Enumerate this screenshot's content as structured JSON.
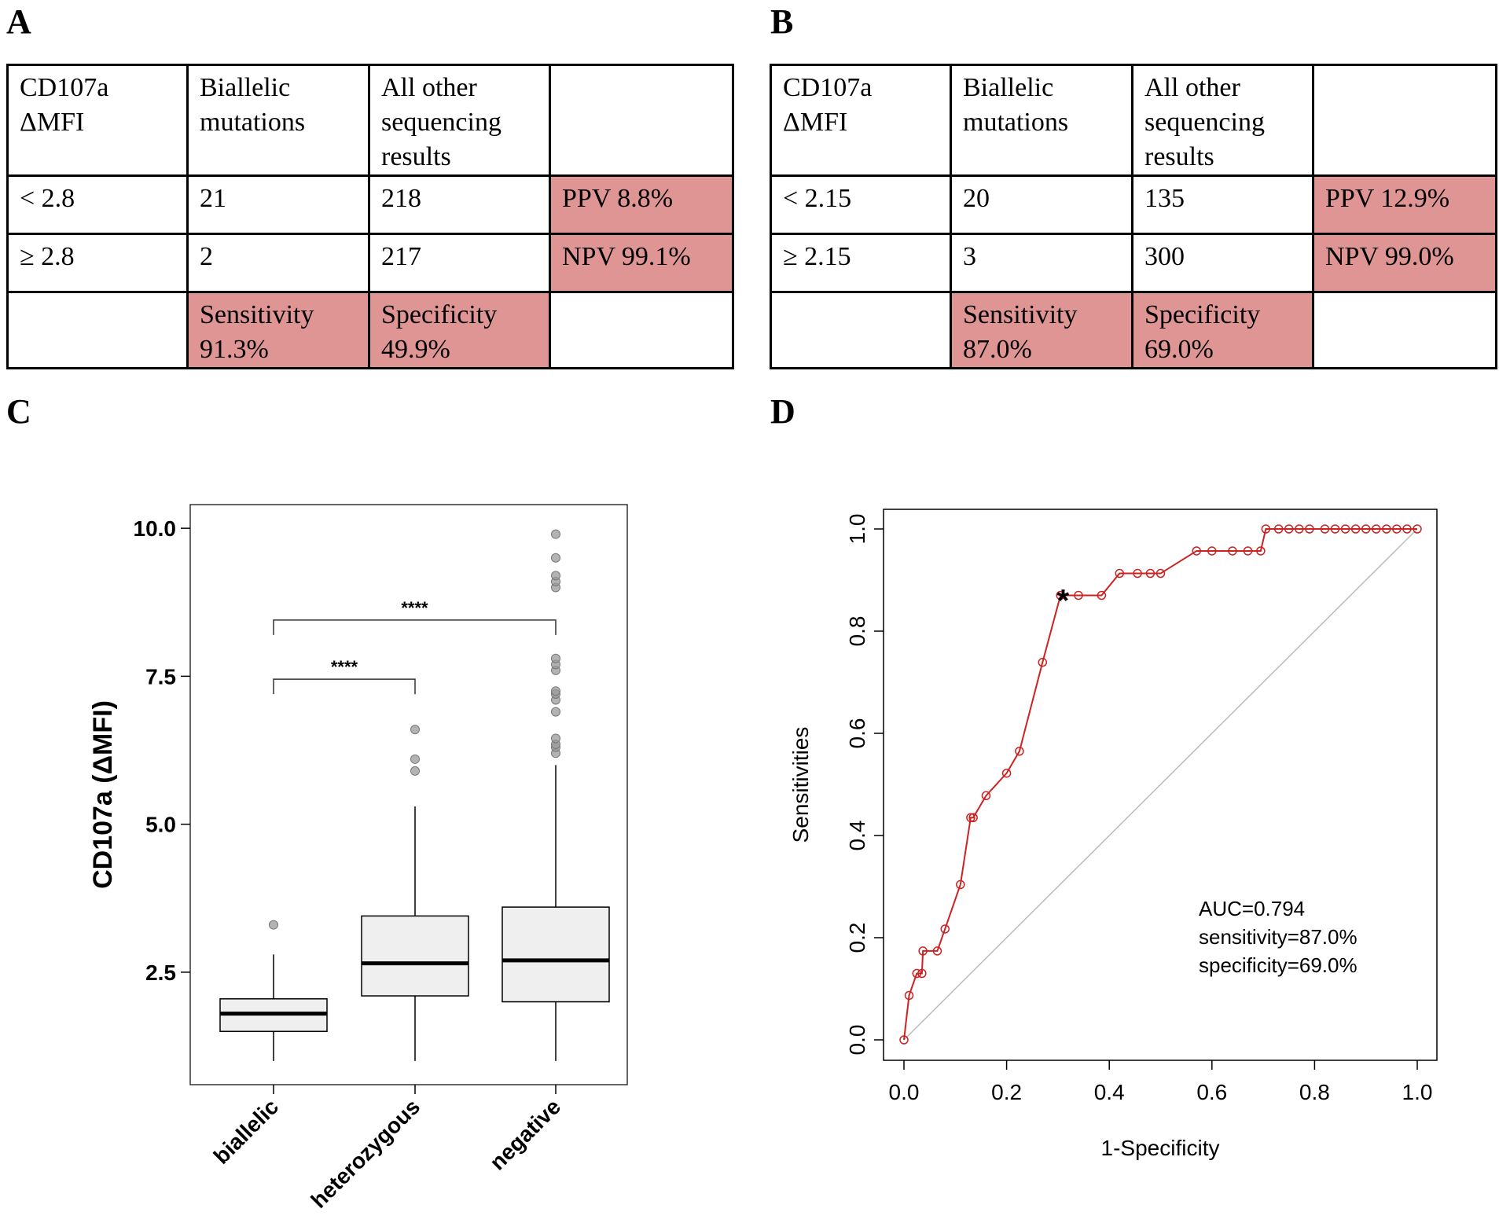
{
  "panels": {
    "a": "A",
    "b": "B",
    "c": "C",
    "d": "D"
  },
  "table_a": {
    "header": [
      "CD107a ΔMFI",
      "Biallelic mutations",
      "All other sequencing results",
      ""
    ],
    "row1": [
      "< 2.8",
      "21",
      "218",
      "PPV 8.8%"
    ],
    "row2": [
      "≥ 2.8",
      "2",
      "217",
      "NPV 99.1%"
    ],
    "row3": [
      "",
      "Sensitivity 91.3%",
      "Specificity 49.9%",
      ""
    ]
  },
  "table_b": {
    "header": [
      "CD107a ΔMFI",
      "Biallelic mutations",
      "All other sequencing results",
      ""
    ],
    "row1": [
      "< 2.15",
      "20",
      "135",
      "PPV 12.9%"
    ],
    "row2": [
      "≥ 2.15",
      "3",
      "300",
      "NPV 99.0%"
    ],
    "row3": [
      "",
      "Sensitivity 87.0%",
      "Specificity 69.0%",
      ""
    ]
  },
  "colors": {
    "highlight": "#e09595",
    "roc": "#cc2222",
    "box_fill": "#efefef"
  },
  "chart_data": [
    {
      "type": "box",
      "ylabel": "CD107a (ΔMFI)",
      "ylim": [
        0.6,
        10.4
      ],
      "yticks": [
        "2.5",
        "5.0",
        "7.5",
        "10.0"
      ],
      "categories": [
        "biallelic",
        "heterozygous",
        "negative"
      ],
      "boxes": [
        {
          "whisker_low": 1.0,
          "q1": 1.5,
          "median": 1.8,
          "q3": 2.05,
          "whisker_high": 2.8,
          "outliers": [
            3.3
          ]
        },
        {
          "whisker_low": 1.0,
          "q1": 2.1,
          "median": 2.65,
          "q3": 3.45,
          "whisker_high": 5.3,
          "outliers": [
            5.9,
            6.1,
            6.6
          ]
        },
        {
          "whisker_low": 1.0,
          "q1": 2.0,
          "median": 2.7,
          "q3": 3.6,
          "whisker_high": 6.0,
          "outliers": [
            6.2,
            6.3,
            6.35,
            6.45,
            6.9,
            7.1,
            7.2,
            7.25,
            7.6,
            7.7,
            7.8,
            9.0,
            9.1,
            9.2,
            9.5,
            9.9
          ]
        }
      ],
      "brackets": [
        {
          "from": "biallelic",
          "to": "heterozygous",
          "label": "****",
          "y": 7.45
        },
        {
          "from": "biallelic",
          "to": "negative",
          "label": "****",
          "y": 8.45
        }
      ]
    },
    {
      "type": "line",
      "xlabel": "1-Specificity",
      "ylabel": "Sensitivities",
      "xlim": [
        0,
        1
      ],
      "ylim": [
        0,
        1
      ],
      "xticks": [
        "0.0",
        "0.2",
        "0.4",
        "0.6",
        "0.8",
        "1.0"
      ],
      "yticks": [
        "0.0",
        "0.2",
        "0.4",
        "0.6",
        "0.8",
        "1.0"
      ],
      "series": [
        {
          "name": "ROC",
          "x": [
            0.0,
            0.01,
            0.025,
            0.035,
            0.037,
            0.065,
            0.08,
            0.11,
            0.13,
            0.135,
            0.16,
            0.2,
            0.225,
            0.27,
            0.305,
            0.34,
            0.385,
            0.42,
            0.455,
            0.48,
            0.5,
            0.57,
            0.6,
            0.64,
            0.67,
            0.695,
            0.705,
            0.73,
            0.75,
            0.77,
            0.79,
            0.82,
            0.84,
            0.86,
            0.88,
            0.9,
            0.92,
            0.94,
            0.96,
            0.98,
            1.0
          ],
          "y": [
            0.0,
            0.087,
            0.13,
            0.13,
            0.174,
            0.174,
            0.217,
            0.304,
            0.435,
            0.435,
            0.478,
            0.522,
            0.565,
            0.739,
            0.87,
            0.87,
            0.87,
            0.913,
            0.913,
            0.913,
            0.913,
            0.957,
            0.957,
            0.957,
            0.957,
            0.957,
            1.0,
            1.0,
            1.0,
            1.0,
            1.0,
            1.0,
            1.0,
            1.0,
            1.0,
            1.0,
            1.0,
            1.0,
            1.0,
            1.0,
            1.0
          ]
        }
      ],
      "diagonal": true,
      "optimal_point": {
        "x": 0.31,
        "y": 0.87,
        "marker": "*"
      },
      "annotations": [
        "AUC=0.794",
        "sensitivity=87.0%",
        "specificity=69.0%"
      ]
    }
  ]
}
